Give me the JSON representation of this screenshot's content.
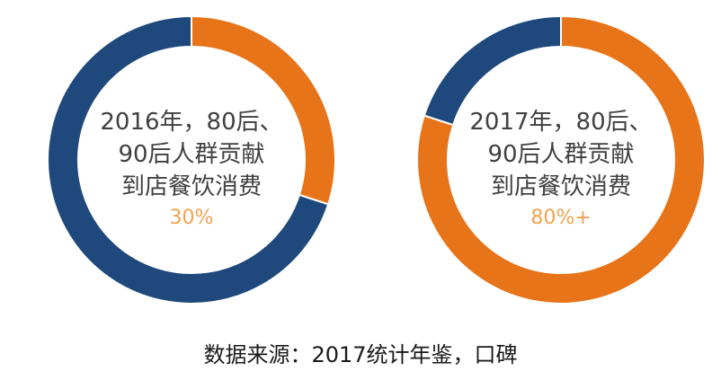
{
  "colors": {
    "orange": "#E8741A",
    "navy": "#1F497D",
    "value_text": "#F0A24F"
  },
  "chart_data": [
    {
      "type": "pie",
      "style": "donut",
      "center_label_lines": [
        "2016年，80后、",
        "90后人群贡献",
        "到店餐饮消费"
      ],
      "center_value": "30%",
      "slices": [
        {
          "value": 30,
          "color": "#E8741A"
        },
        {
          "value": 70,
          "color": "#1F497D"
        }
      ]
    },
    {
      "type": "pie",
      "style": "donut",
      "center_label_lines": [
        "2017年，80后、",
        "90后人群贡献",
        "到店餐饮消费"
      ],
      "center_value": "80%+",
      "slices": [
        {
          "value": 80,
          "color": "#E8741A"
        },
        {
          "value": 20,
          "color": "#1F497D"
        }
      ]
    }
  ],
  "source_text": "数据来源：2017统计年鉴，口碑"
}
